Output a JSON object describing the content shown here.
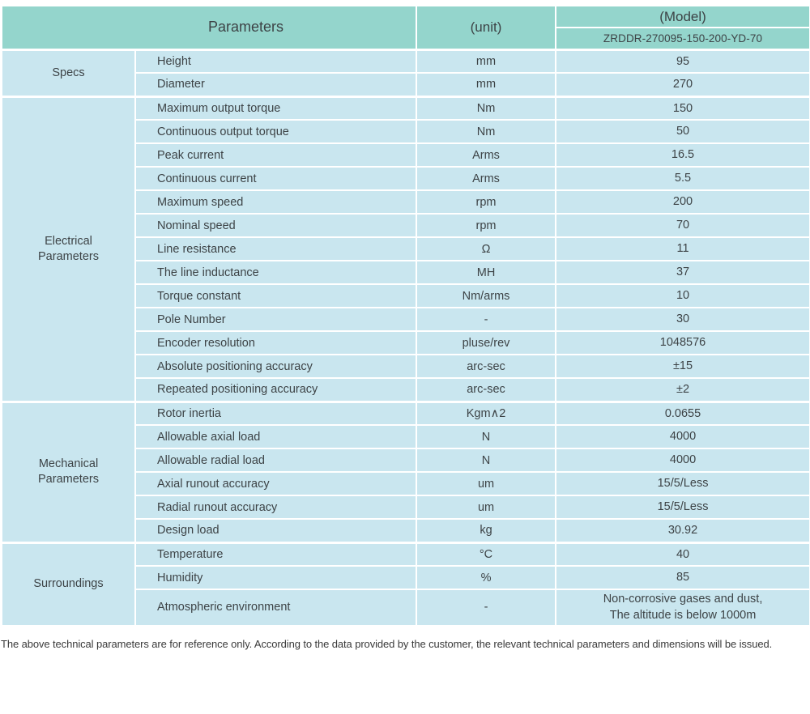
{
  "colors": {
    "header_bg": "#94d5cc",
    "cell_bg": "#c9e6ef",
    "text": "#3d4346",
    "grid": "#ffffff"
  },
  "table": {
    "header": {
      "parameters_label": "Parameters",
      "unit_label": "(unit)",
      "model_label": "(Model)",
      "model_value": "ZRDDR-270095-150-200-YD-70"
    },
    "sections": [
      {
        "label": "Specs",
        "rows": [
          {
            "name": "Height",
            "unit": "mm",
            "value": "95"
          },
          {
            "name": "Diameter",
            "unit": "mm",
            "value": "270"
          }
        ]
      },
      {
        "label": "Electrical\nParameters",
        "rows": [
          {
            "name": "Maximum output torque",
            "unit": "Nm",
            "value": "150"
          },
          {
            "name": "Continuous output torque",
            "unit": "Nm",
            "value": "50"
          },
          {
            "name": "Peak current",
            "unit": "Arms",
            "value": "16.5"
          },
          {
            "name": "Continuous current",
            "unit": "Arms",
            "value": "5.5"
          },
          {
            "name": "Maximum speed",
            "unit": "rpm",
            "value": "200"
          },
          {
            "name": "Nominal speed",
            "unit": "rpm",
            "value": "70"
          },
          {
            "name": "Line resistance",
            "unit": "Ω",
            "value": "11"
          },
          {
            "name": "The line inductance",
            "unit": "MH",
            "value": "37"
          },
          {
            "name": "Torque constant",
            "unit": "Nm/arms",
            "value": "10"
          },
          {
            "name": "Pole Number",
            "unit": "-",
            "value": "30"
          },
          {
            "name": "Encoder resolution",
            "unit": "pluse/rev",
            "value": "1048576"
          },
          {
            "name": "Absolute positioning accuracy",
            "unit": "arc-sec",
            "value": "±15"
          },
          {
            "name": "Repeated positioning accuracy",
            "unit": "arc-sec",
            "value": "±2"
          }
        ]
      },
      {
        "label": "Mechanical\nParameters",
        "rows": [
          {
            "name": "Rotor inertia",
            "unit": "Kgm∧2",
            "value": "0.0655"
          },
          {
            "name": "Allowable axial load",
            "unit": "N",
            "value": "4000"
          },
          {
            "name": "Allowable radial load",
            "unit": "N",
            "value": "4000"
          },
          {
            "name": "Axial runout accuracy",
            "unit": "um",
            "value": "15/5/Less"
          },
          {
            "name": "Radial runout accuracy",
            "unit": "um",
            "value": "15/5/Less"
          },
          {
            "name": "Design load",
            "unit": "kg",
            "value": "30.92"
          }
        ]
      },
      {
        "label": "Surroundings",
        "rows": [
          {
            "name": "Temperature",
            "unit": "°C",
            "value": "40"
          },
          {
            "name": "Humidity",
            "unit": "%",
            "value": "85"
          },
          {
            "name": "Atmospheric environment",
            "unit": "-",
            "value": "Non-corrosive gases and dust,\nThe altitude is below 1000m",
            "multiline": true
          }
        ]
      }
    ]
  },
  "footer": {
    "note": "The above technical parameters are for reference only. According to the data provided by the customer, the relevant technical parameters and dimensions will be issued."
  }
}
